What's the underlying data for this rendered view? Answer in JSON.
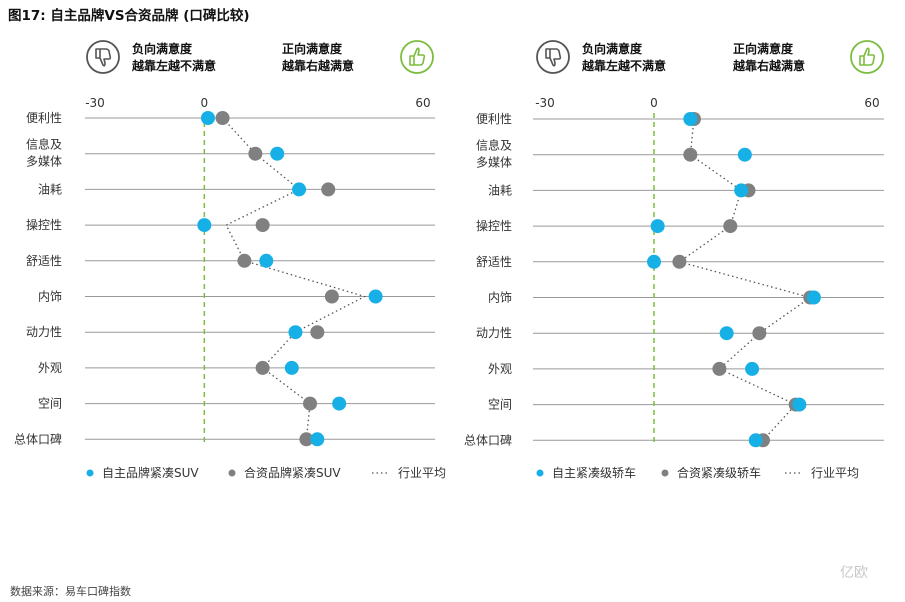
{
  "figure_title": "图17: 自主品牌VS合资品牌 (口碑比较)",
  "source": "数据来源：易车口碑指数",
  "watermark": "亿欧",
  "colors": {
    "own": "#17b0e6",
    "jv": "#808080",
    "avg": "#555555",
    "zero": "#7cbd3f",
    "icon": "#7cbd3f",
    "grid": "#999999"
  },
  "chart_data": [
    {
      "type": "scatter",
      "orientation": "horizontal",
      "xlim": [
        -30,
        60
      ],
      "ticks": [
        "-30",
        "0",
        "60"
      ],
      "tick_values": [
        -30,
        0,
        60
      ],
      "negative_label": [
        "负向满意度",
        "越靠左越不满意"
      ],
      "positive_label": [
        "正向满意度",
        "越靠右越满意"
      ],
      "categories": [
        "便利性",
        "信息及\n多媒体",
        "油耗",
        "操控性",
        "舒适性",
        "内饰",
        "动力性",
        "外观",
        "空间",
        "总体口碑"
      ],
      "series": [
        {
          "name": "自主品牌紧凑SUV",
          "values": [
            1,
            20,
            26,
            0,
            17,
            47,
            25,
            24,
            37,
            31
          ]
        },
        {
          "name": "合资品牌紧凑SUV",
          "values": [
            5,
            14,
            34,
            16,
            11,
            35,
            31,
            16,
            29,
            28
          ]
        }
      ],
      "average_line_label": "行业平均",
      "average_values": [
        5,
        14,
        26,
        6,
        11,
        44,
        25,
        16,
        29,
        28
      ]
    },
    {
      "type": "scatter",
      "orientation": "horizontal",
      "xlim": [
        -30,
        60
      ],
      "ticks": [
        "-30",
        "0",
        "60"
      ],
      "tick_values": [
        -30,
        0,
        60
      ],
      "negative_label": [
        "负向满意度",
        "越靠左越不满意"
      ],
      "positive_label": [
        "正向满意度",
        "越靠右越满意"
      ],
      "categories": [
        "便利性",
        "信息及\n多媒体",
        "油耗",
        "操控性",
        "舒适性",
        "内饰",
        "动力性",
        "外观",
        "空间",
        "总体口碑"
      ],
      "series": [
        {
          "name": "自主紧凑级轿车",
          "values": [
            10,
            25,
            24,
            1,
            0,
            44,
            20,
            27,
            40,
            28
          ]
        },
        {
          "name": "合资紧凑级轿车",
          "values": [
            11,
            10,
            26,
            21,
            7,
            43,
            29,
            18,
            39,
            30
          ]
        }
      ],
      "average_line_label": "行业平均",
      "average_values": [
        11,
        10,
        24,
        21,
        7,
        43,
        29,
        18,
        39,
        30
      ]
    }
  ]
}
